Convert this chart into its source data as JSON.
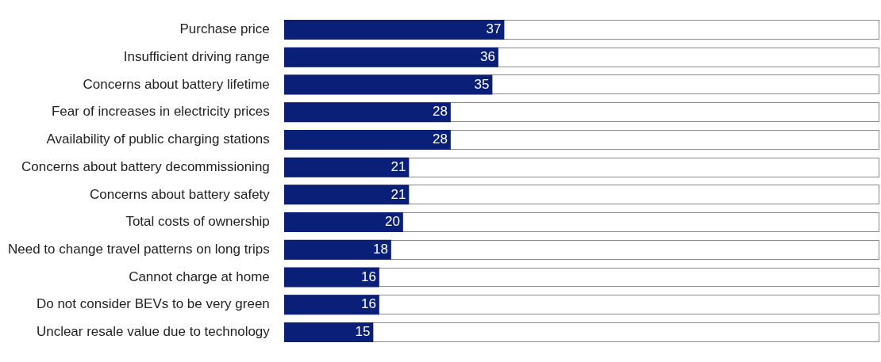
{
  "chart_data": {
    "type": "bar",
    "orientation": "horizontal",
    "categories": [
      "Purchase price",
      "Insufficient driving range",
      "Concerns about battery lifetime",
      "Fear of increases in electricity prices",
      "Availability of public charging stations",
      "Concerns about battery decommissioning",
      "Concerns about battery safety",
      "Total costs of ownership",
      "Need to change travel patterns on long trips",
      "Cannot charge at home",
      "Do not consider BEVs to be very green",
      "Unclear resale value due to technology"
    ],
    "values": [
      37,
      36,
      35,
      28,
      28,
      21,
      21,
      20,
      18,
      16,
      16,
      15
    ],
    "color": "#0a1f78",
    "xlim": [
      0,
      100
    ],
    "tick_labels": "y",
    "grid": false,
    "legend": false,
    "data_labels": true
  }
}
